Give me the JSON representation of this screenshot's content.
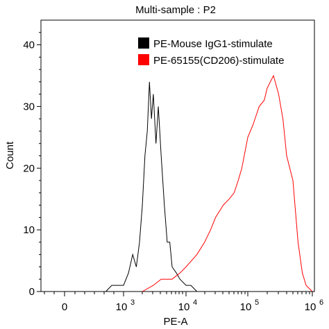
{
  "chart_data": {
    "type": "line",
    "title": "Multi-sample : P2",
    "xlabel": "PE-A",
    "ylabel": "Count",
    "x_scale": "biexponential",
    "ylim": [
      0,
      44
    ],
    "y_ticks": [
      0,
      10,
      20,
      30,
      40
    ],
    "x_ticks": [
      {
        "base": "0",
        "exp": ""
      },
      {
        "base": "10",
        "exp": "3"
      },
      {
        "base": "10",
        "exp": "4"
      },
      {
        "base": "10",
        "exp": "5"
      },
      {
        "base": "10",
        "exp": "6"
      }
    ],
    "grid": false,
    "legend_position": "top-right",
    "series": [
      {
        "name": "PE-Mouse IgG1-stimulate",
        "color": "#000000",
        "x": [
          "7e2",
          "8e2",
          "1e3",
          "1.2e3",
          "1.4e3",
          "1.6e3",
          "1.8e3",
          "2e3",
          "2.2e3",
          "2.4e3",
          "2.6e3",
          "2.8e3",
          "3e3",
          "3.3e3",
          "3.6e3",
          "4e3",
          "4.5e3",
          "5e3",
          "5.5e3",
          "6e3",
          "7e3",
          "8e3",
          "1e4",
          "1.2e4",
          "1.5e4"
        ],
        "values": [
          0,
          1,
          1,
          3,
          6,
          4,
          8,
          14,
          22,
          26,
          34,
          28,
          32,
          24,
          30,
          22,
          14,
          8,
          8,
          4,
          3,
          2,
          1,
          1,
          0
        ]
      },
      {
        "name": "PE-65155(CD206)-stimulate",
        "color": "#ff0000",
        "x": [
          "2e3",
          "3e3",
          "4e3",
          "6e3",
          "8e3",
          "1e4",
          "1.5e4",
          "2e4",
          "2.5e4",
          "3e4",
          "4e4",
          "5e4",
          "6e4",
          "7e4",
          "8e4",
          "1e5",
          "1.2e5",
          "1.5e5",
          "1.8e5",
          "2e5",
          "2.5e5",
          "3e5",
          "3.5e5",
          "4e5",
          "5e5",
          "6e5",
          "7e5",
          "8e5",
          "1e6"
        ],
        "values": [
          0,
          1,
          2,
          2,
          3,
          4,
          6,
          8,
          10,
          12,
          14,
          15,
          16,
          18,
          20,
          25,
          27,
          30,
          31,
          33,
          35,
          32,
          28,
          22,
          18,
          8,
          3,
          1,
          0
        ]
      }
    ]
  }
}
